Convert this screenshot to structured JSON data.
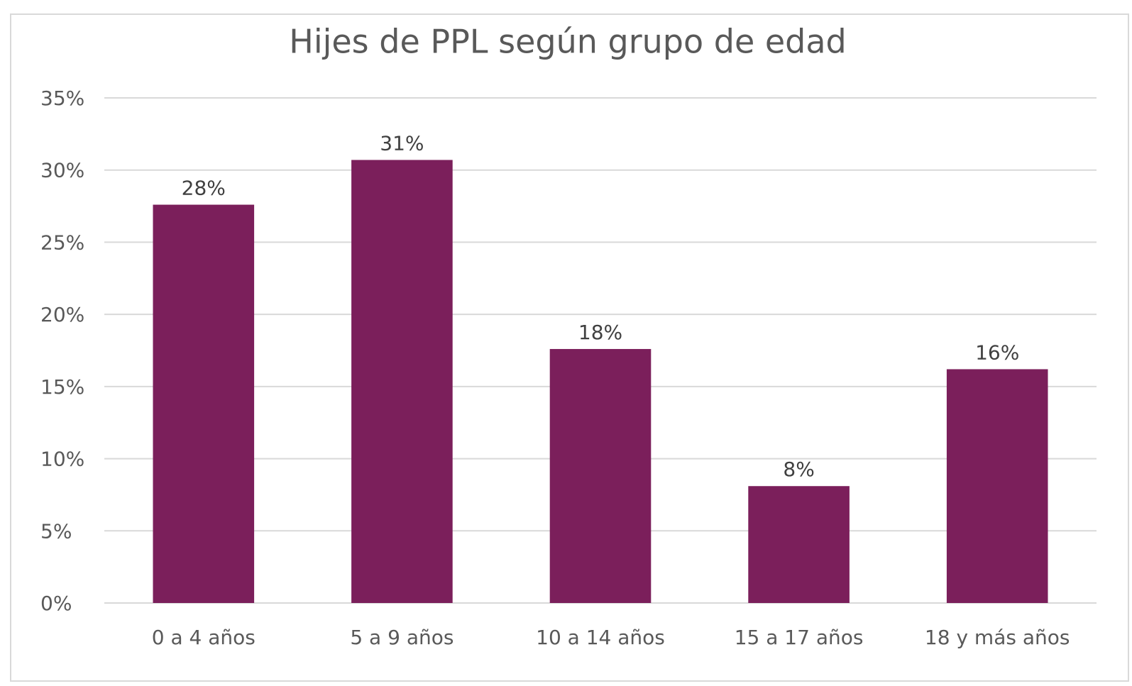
{
  "chart_data": {
    "type": "bar",
    "title": "Hijes de PPL según grupo de edad",
    "categories": [
      "0 a 4 años",
      "5 a 9 años",
      "10 a 14 años",
      "15 a 17 años",
      "18 y más años"
    ],
    "values": [
      27.6,
      30.7,
      17.6,
      8.1,
      16.2
    ],
    "value_labels": [
      "28%",
      "31%",
      "18%",
      "8%",
      "16%"
    ],
    "color": "#7b1f5b",
    "ylim": [
      0,
      35
    ],
    "yticks": [
      {
        "value": 0,
        "label": "0%"
      },
      {
        "value": 5,
        "label": "5%"
      },
      {
        "value": 10,
        "label": "10%"
      },
      {
        "value": 15,
        "label": "15%"
      },
      {
        "value": 20,
        "label": "20%"
      },
      {
        "value": 25,
        "label": "25%"
      },
      {
        "value": 30,
        "label": "30%"
      },
      {
        "value": 35,
        "label": "35%"
      }
    ],
    "grid": true
  }
}
